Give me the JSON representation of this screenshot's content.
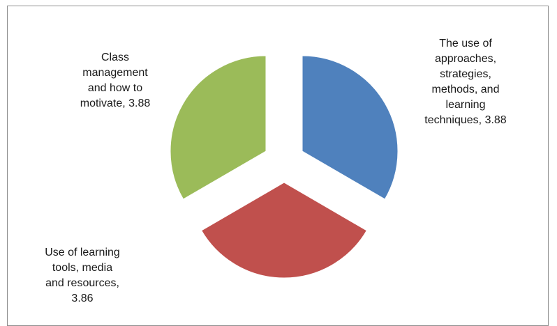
{
  "chart_data": {
    "type": "pie",
    "exploded": true,
    "slices": [
      {
        "label": "The use of approaches, strategies, methods, and learning techniques",
        "value": 3.88,
        "display": "The use of\napproaches,\nstrategies,\nmethods, and\nlearning\ntechniques, 3.88",
        "color": "#4F81BD"
      },
      {
        "label": "Use of learning tools, media and resources",
        "value": 3.86,
        "display": "Use of learning\ntools, media\nand resources,\n3.86",
        "color": "#C0504D"
      },
      {
        "label": "Class management and how to motivate",
        "value": 3.88,
        "display": "Class\nmanagement\nand how to\nmotivate, 3.88",
        "color": "#9BBB59"
      }
    ]
  }
}
